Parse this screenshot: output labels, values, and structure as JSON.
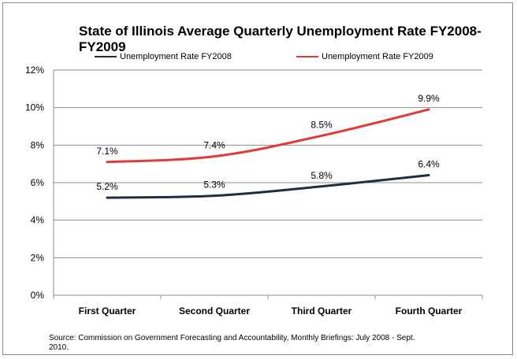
{
  "chart_data": {
    "type": "line",
    "title": "State of Illinois Average Quarterly Unemployment Rate FY2008-FY2009",
    "categories": [
      "First Quarter",
      "Second Quarter",
      "Third Quarter",
      "Fourth Quarter"
    ],
    "series": [
      {
        "name": "Unemployment Rate FY2008",
        "values": [
          5.2,
          5.3,
          5.8,
          6.4
        ],
        "labels": [
          "5.2%",
          "5.3%",
          "5.8%",
          "6.4%"
        ],
        "color": "#1f2d40"
      },
      {
        "name": "Unemployment Rate FY2009",
        "values": [
          7.1,
          7.4,
          8.5,
          9.9
        ],
        "labels": [
          "7.1%",
          "7.4%",
          "8.5%",
          "9.9%"
        ],
        "color": "#e03a3a"
      }
    ],
    "ylim": [
      0,
      12
    ],
    "yticks": [
      0,
      2,
      4,
      6,
      8,
      10,
      12
    ],
    "ytick_labels": [
      "0%",
      "2%",
      "4%",
      "6%",
      "8%",
      "10%",
      "12%"
    ],
    "grid": true,
    "legend_position": "top",
    "source": "Source: Commission on  Government Forecasting and Accountability, Monthly Briefings: July 2008 - Sept. 2010."
  }
}
